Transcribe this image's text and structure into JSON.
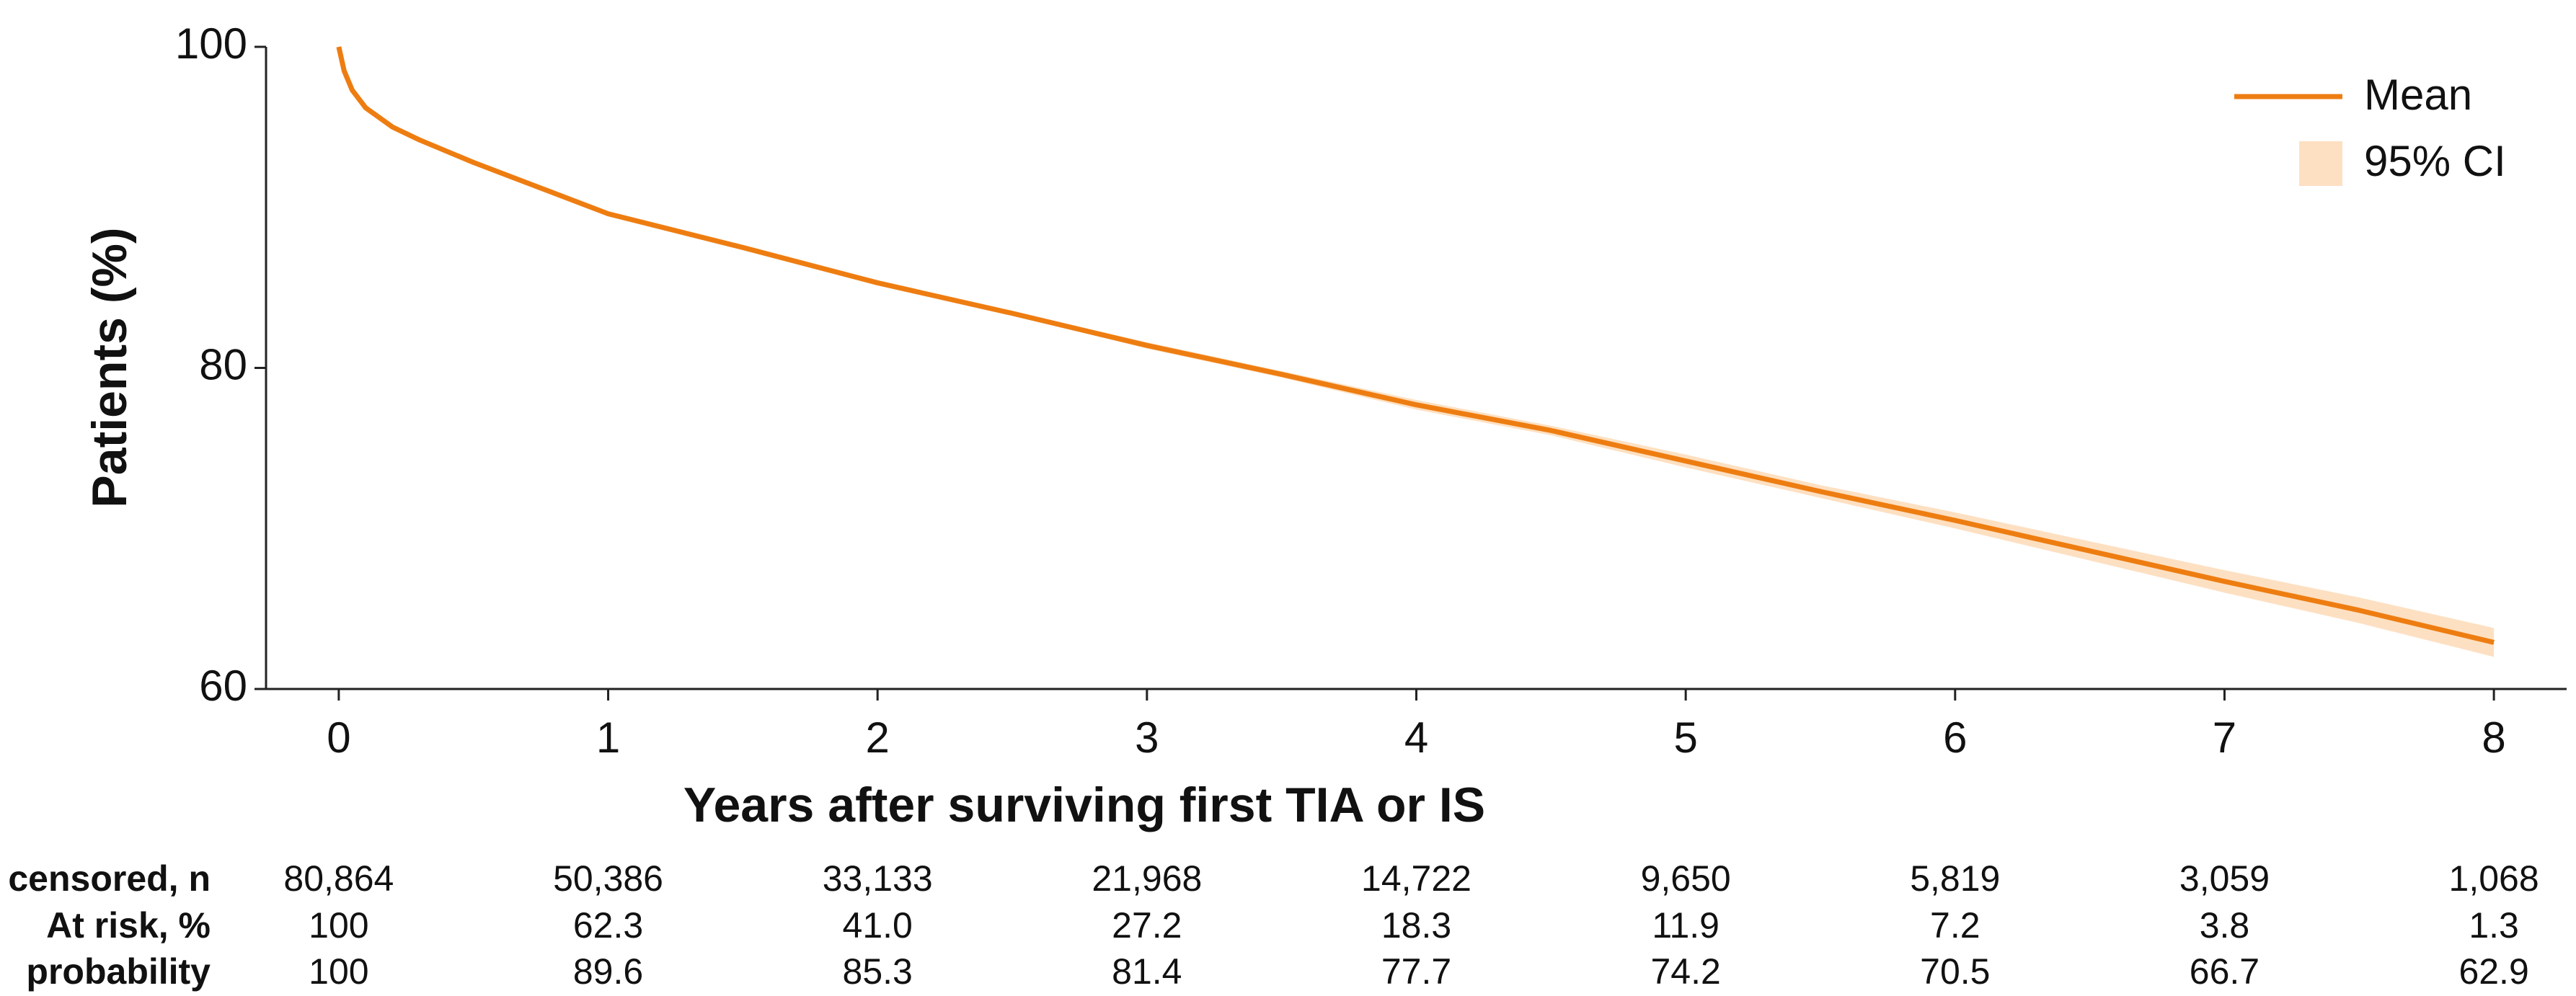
{
  "chart_data": {
    "type": "line",
    "x_label": "Years after surviving first TIA or IS",
    "y_label": "Patients (%)",
    "xlim": [
      -0.27,
      8.27
    ],
    "xticks": [
      0,
      1,
      2,
      3,
      4,
      5,
      6,
      7,
      8
    ],
    "ylim": [
      60,
      100
    ],
    "yticks": [
      60,
      80,
      100
    ],
    "legend_position": "upper right",
    "x": [
      0,
      0.02,
      0.05,
      0.1,
      0.2,
      0.3,
      0.5,
      0.75,
      1,
      1.5,
      2,
      2.5,
      3,
      3.5,
      4,
      4.5,
      5,
      5.5,
      6,
      6.5,
      7,
      7.5,
      8
    ],
    "series": [
      {
        "name": "Mean",
        "color": "#ee7d11",
        "values": [
          100,
          98.5,
          97.3,
          96.2,
          95.0,
          94.2,
          92.8,
          91.2,
          89.6,
          87.5,
          85.3,
          83.4,
          81.4,
          79.6,
          77.7,
          76.1,
          74.2,
          72.3,
          70.5,
          68.6,
          66.7,
          64.9,
          62.9
        ]
      }
    ],
    "ci": {
      "name": "95% CI",
      "color": "#fde0c2",
      "lower": [
        100,
        98.4,
        97.2,
        96.1,
        94.9,
        94.1,
        92.7,
        91.1,
        89.5,
        87.4,
        85.2,
        83.3,
        81.2,
        79.4,
        77.4,
        75.8,
        73.8,
        71.9,
        70.0,
        68.0,
        66.0,
        64.1,
        62.0
      ],
      "upper": [
        100,
        98.6,
        97.4,
        96.3,
        95.1,
        94.3,
        92.9,
        91.3,
        89.7,
        87.6,
        85.4,
        83.5,
        81.6,
        79.8,
        78.0,
        76.4,
        74.6,
        72.7,
        71.0,
        69.2,
        67.4,
        65.7,
        63.8
      ]
    },
    "risk_table": {
      "rows": [
        {
          "label": "censored, n",
          "values": [
            "80,864",
            "50,386",
            "33,133",
            "21,968",
            "14,722",
            "9,650",
            "5,819",
            "3,059",
            "1,068"
          ]
        },
        {
          "label": "At risk, %",
          "values": [
            "100",
            "62.3",
            "41.0",
            "27.2",
            "18.3",
            "11.9",
            "7.2",
            "3.8",
            "1.3"
          ]
        },
        {
          "label": "probability",
          "values": [
            "100",
            "89.6",
            "85.3",
            "81.4",
            "77.7",
            "74.2",
            "70.5",
            "66.7",
            "62.9"
          ]
        }
      ]
    }
  }
}
